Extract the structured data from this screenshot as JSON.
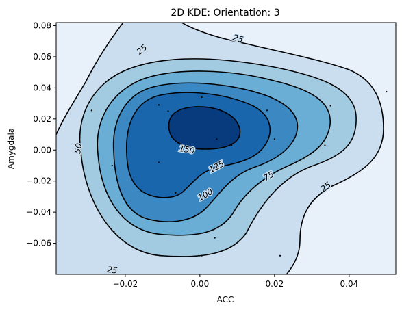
{
  "chart_data": {
    "type": "contour",
    "title": "2D KDE: Orientation: 3",
    "xlabel": "ACC",
    "ylabel": "Amygdala",
    "xlim": [
      -0.0385,
      0.0525
    ],
    "ylim": [
      -0.08,
      0.082
    ],
    "x_ticks": [
      -0.02,
      0.0,
      0.02,
      0.04
    ],
    "x_tick_labels": [
      "−0.02",
      "0.00",
      "0.02",
      "0.04"
    ],
    "y_ticks": [
      -0.06,
      -0.04,
      -0.02,
      0.0,
      0.02,
      0.04,
      0.06,
      0.08
    ],
    "y_tick_labels": [
      "−0.06",
      "−0.04",
      "−0.02",
      "0.00",
      "0.02",
      "0.04",
      "0.06",
      "0.08"
    ],
    "background_color": "#e8f0fa",
    "contour_levels": [
      25,
      50,
      75,
      100,
      125,
      150
    ],
    "contour_line_color": "#000000",
    "fill_colors": [
      "#cadeef",
      "#a2cbe2",
      "#6aadd5",
      "#3b88c3",
      "#1966ad",
      "#083b7d"
    ],
    "contour_labels": [
      {
        "text": "25",
        "x": -0.0155,
        "y": 0.0645
      },
      {
        "text": "25",
        "x": 0.0102,
        "y": 0.0715
      },
      {
        "text": "25",
        "x": 0.0338,
        "y": -0.024
      },
      {
        "text": "25",
        "x": -0.0235,
        "y": -0.0775
      },
      {
        "text": "50",
        "x": -0.0325,
        "y": 0.001
      },
      {
        "text": "75",
        "x": 0.0185,
        "y": -0.017
      },
      {
        "text": "100",
        "x": 0.0015,
        "y": -0.029
      },
      {
        "text": "125",
        "x": 0.0045,
        "y": -0.011
      },
      {
        "text": "150",
        "x": -0.0035,
        "y": 0.0
      },
      {
        "text": "150",
        "x": -0.004,
        "y": 0.0
      }
    ],
    "points": [
      {
        "x": -0.029,
        "y": 0.0255
      },
      {
        "x": -0.011,
        "y": 0.029
      },
      {
        "x": -0.0085,
        "y": 0.025
      },
      {
        "x": 0.0005,
        "y": 0.034
      },
      {
        "x": 0.018,
        "y": 0.0255
      },
      {
        "x": 0.035,
        "y": 0.0285
      },
      {
        "x": 0.05,
        "y": 0.0375
      },
      {
        "x": 0.0045,
        "y": 0.007
      },
      {
        "x": 0.0085,
        "y": 0.003
      },
      {
        "x": 0.02,
        "y": 0.007
      },
      {
        "x": 0.0335,
        "y": 0.003
      },
      {
        "x": -0.0235,
        "y": -0.01
      },
      {
        "x": -0.011,
        "y": -0.008
      },
      {
        "x": -0.0065,
        "y": -0.0275
      },
      {
        "x": -0.023,
        "y": -0.0525
      },
      {
        "x": 0.004,
        "y": -0.0565
      },
      {
        "x": 0.0005,
        "y": -0.068
      },
      {
        "x": 0.0215,
        "y": -0.068
      }
    ]
  }
}
